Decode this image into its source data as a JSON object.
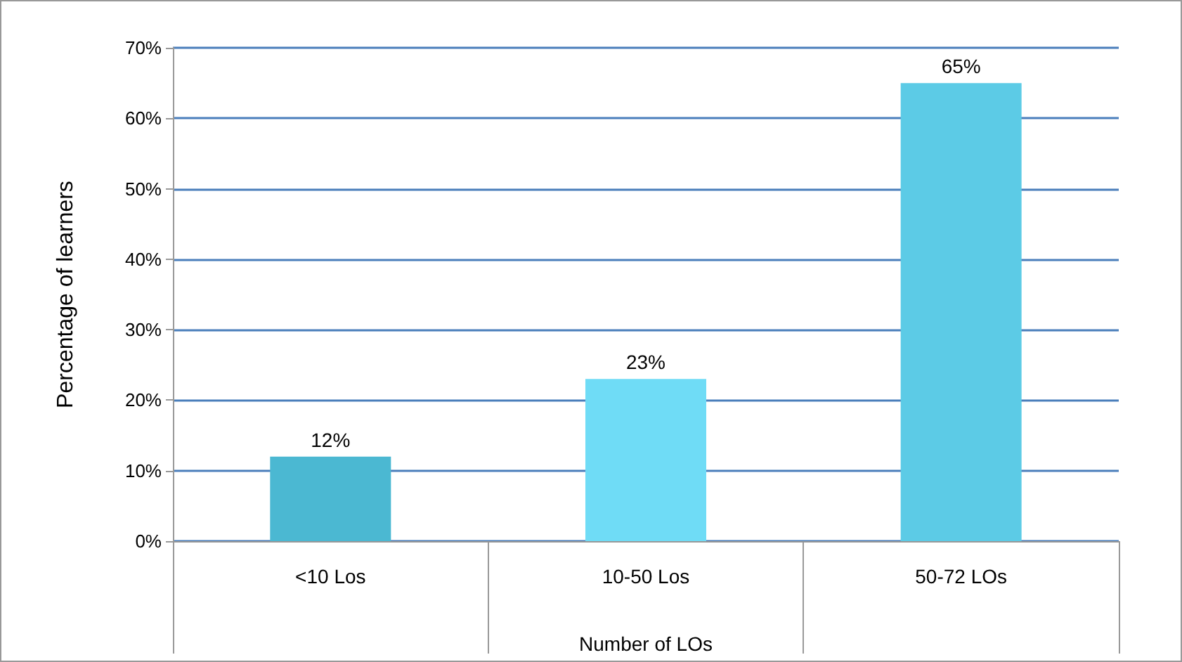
{
  "chart_data": {
    "type": "bar",
    "xlabel": "Number of LOs",
    "ylabel": "Percentage of learners",
    "categories": [
      "<10 Los",
      "10-50 Los",
      "50-72 LOs"
    ],
    "values": [
      12,
      23,
      65
    ],
    "colors": [
      "#4bb8d2",
      "#6fdcf6",
      "#5ccbe6"
    ],
    "value_labels": [
      "12%",
      "23%",
      "65%"
    ],
    "ylim": [
      0,
      70
    ],
    "yticks": [
      {
        "value": 0,
        "label": "0%"
      },
      {
        "value": 10,
        "label": "10%"
      },
      {
        "value": 20,
        "label": "20%"
      },
      {
        "value": 30,
        "label": "30%"
      },
      {
        "value": 40,
        "label": "40%"
      },
      {
        "value": 50,
        "label": "50%"
      },
      {
        "value": 60,
        "label": "60%"
      },
      {
        "value": 70,
        "label": "70%"
      }
    ],
    "grid": "y"
  }
}
